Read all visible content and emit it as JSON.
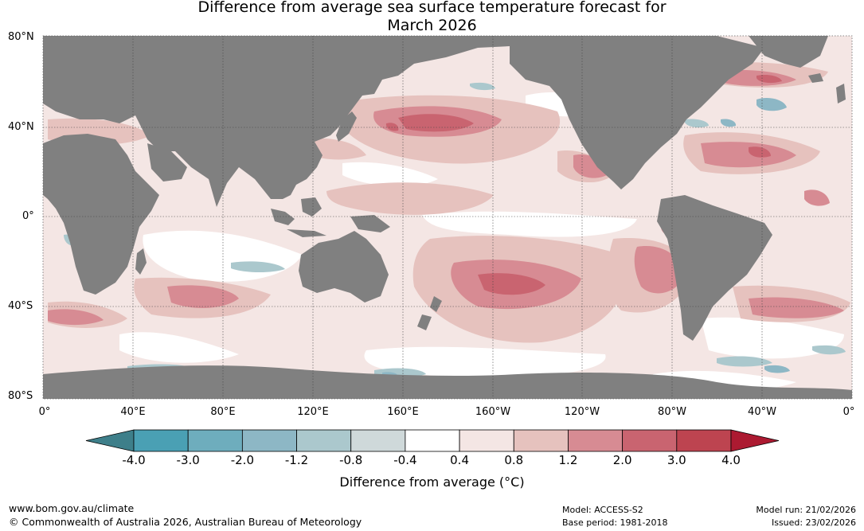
{
  "title_line1": "Difference from average sea surface temperature forecast for",
  "title_line2": "March 2026",
  "lat_labels": [
    "80°N",
    "40°N",
    "0°",
    "40°S",
    "80°S"
  ],
  "lon_labels": [
    "0°",
    "40°E",
    "80°E",
    "120°E",
    "160°E",
    "160°W",
    "120°W",
    "80°W",
    "40°W",
    "0°"
  ],
  "colorbar": {
    "ticks": [
      "-4.0",
      "-3.0",
      "-2.0",
      "-1.2",
      "-0.8",
      "-0.4",
      "0.4",
      "0.8",
      "1.2",
      "2.0",
      "3.0",
      "4.0"
    ],
    "colors": [
      "#3e7f8a",
      "#4aa0b4",
      "#6eadbd",
      "#8db7c5",
      "#abc8cd",
      "#cfd9da",
      "#ffffff",
      "#f4e6e4",
      "#e6c2be",
      "#d78b93",
      "#c96470",
      "#bd4450",
      "#ac1a31"
    ],
    "label": "Difference from average (°C)"
  },
  "colors": {
    "land": "#808080",
    "ocean_neutral": "#ffffff",
    "grid": "#444444"
  },
  "footer": {
    "url": "www.bom.gov.au/climate",
    "copyright": "© Commonwealth of Australia 2026, Australian Bureau of Meteorology",
    "model": "Model: ACCESS-S2",
    "base_period": "Base period: 1981-2018",
    "model_run": "Model run: 21/02/2026",
    "issued": "Issued: 23/02/2026"
  }
}
